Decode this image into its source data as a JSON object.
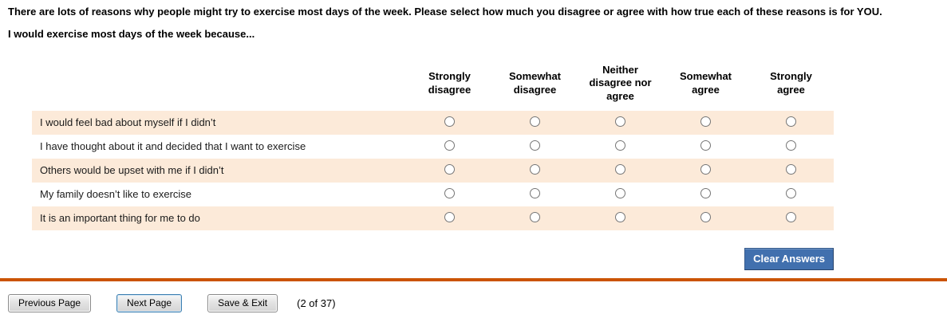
{
  "header": {
    "instructions": "There are lots of reasons why people might try to exercise most days of the week. Please select how much you disagree or agree with how true each of these reasons is for YOU.",
    "stem": "I would exercise most days of the week because..."
  },
  "matrix": {
    "columns": [
      "Strongly disagree",
      "Somewhat disagree",
      "Neither disagree nor agree",
      "Somewhat agree",
      "Strongly agree"
    ],
    "rows": [
      "I would feel bad about myself if I didn’t",
      "I have thought about it and decided that I want to exercise",
      "Others would be upset with me if I didn’t",
      "My family doesn’t like to exercise",
      "It is an important thing for me to do"
    ],
    "selected": null
  },
  "buttons": {
    "clear": "Clear Answers",
    "previous": "Previous Page",
    "next": "Next Page",
    "save": "Save & Exit"
  },
  "pagination": "(2 of 37)",
  "colors": {
    "row_shade": "#fcead9",
    "clear_button_bg": "#4170ae",
    "divider": "#cb5405"
  }
}
